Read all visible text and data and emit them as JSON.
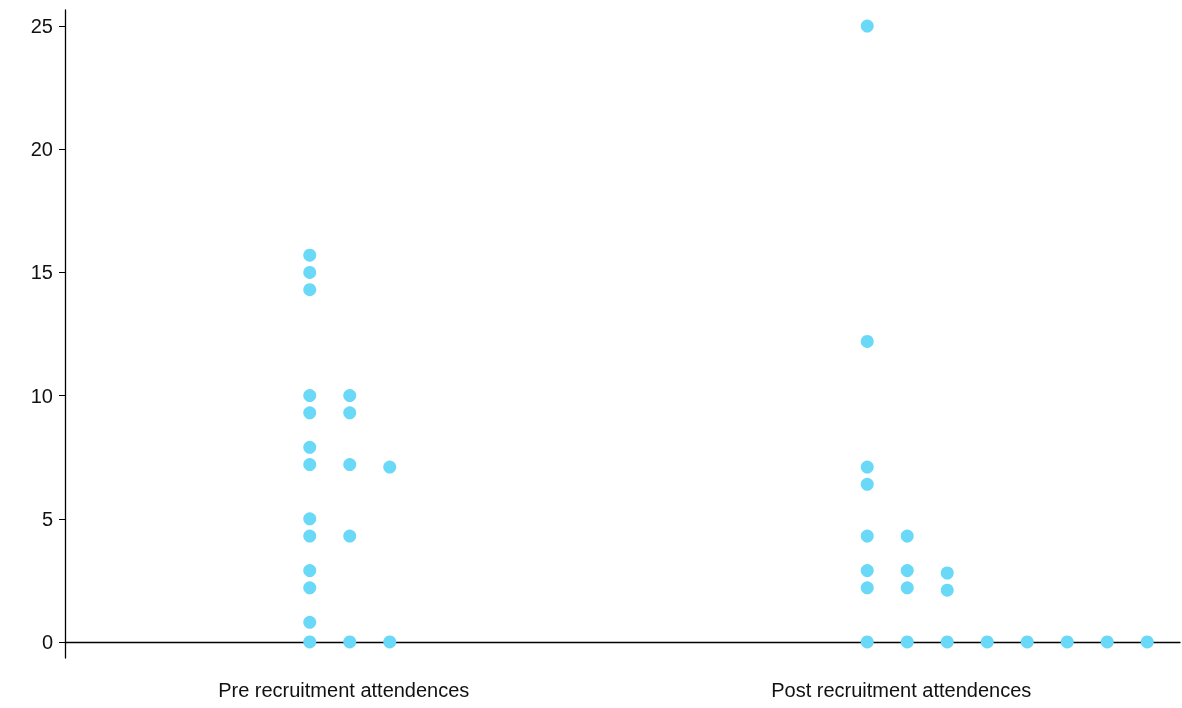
{
  "chart_data": {
    "type": "scatter",
    "categories": [
      "Pre recruitment attendences",
      "Post recruitment attendences"
    ],
    "series": [
      {
        "color": "#6ad9f7",
        "x": [
          "Pre recruitment attendences",
          "Pre recruitment attendences",
          "Pre recruitment attendences",
          "Pre recruitment attendences",
          "Pre recruitment attendences",
          "Pre recruitment attendences",
          "Pre recruitment attendences",
          "Pre recruitment attendences",
          "Pre recruitment attendences",
          "Pre recruitment attendences",
          "Pre recruitment attendences",
          "Pre recruitment attendences",
          "Pre recruitment attendences",
          "Pre recruitment attendences",
          "Pre recruitment attendences",
          "Pre recruitment attendences",
          "Pre recruitment attendences",
          "Pre recruitment attendences",
          "Pre recruitment attendences",
          "Pre recruitment attendences",
          "Post recruitment attendences",
          "Post recruitment attendences",
          "Post recruitment attendences",
          "Post recruitment attendences",
          "Post recruitment attendences",
          "Post recruitment attendences",
          "Post recruitment attendences",
          "Post recruitment attendences",
          "Post recruitment attendences",
          "Post recruitment attendences",
          "Post recruitment attendences",
          "Post recruitment attendences",
          "Post recruitment attendences",
          "Post recruitment attendences",
          "Post recruitment attendences",
          "Post recruitment attendences",
          "Post recruitment attendences",
          "Post recruitment attendences",
          "Post recruitment attendences",
          "Post recruitment attendences"
        ],
        "values": [
          15.7,
          15.0,
          14.3,
          10.0,
          10.0,
          9.3,
          9.3,
          7.9,
          7.2,
          7.2,
          7.1,
          5.0,
          4.3,
          4.3,
          2.9,
          2.2,
          0.8,
          0,
          0,
          0,
          25.0,
          12.2,
          7.1,
          6.4,
          4.3,
          4.3,
          2.9,
          2.9,
          2.8,
          2.2,
          2.2,
          2.1,
          0,
          0,
          0,
          0,
          0,
          0,
          0,
          0
        ]
      }
    ],
    "ylim": [
      -0.65,
      25.65
    ],
    "yticks": [
      0,
      5,
      10,
      15,
      20,
      25
    ],
    "grid": false,
    "marker": "circle"
  }
}
